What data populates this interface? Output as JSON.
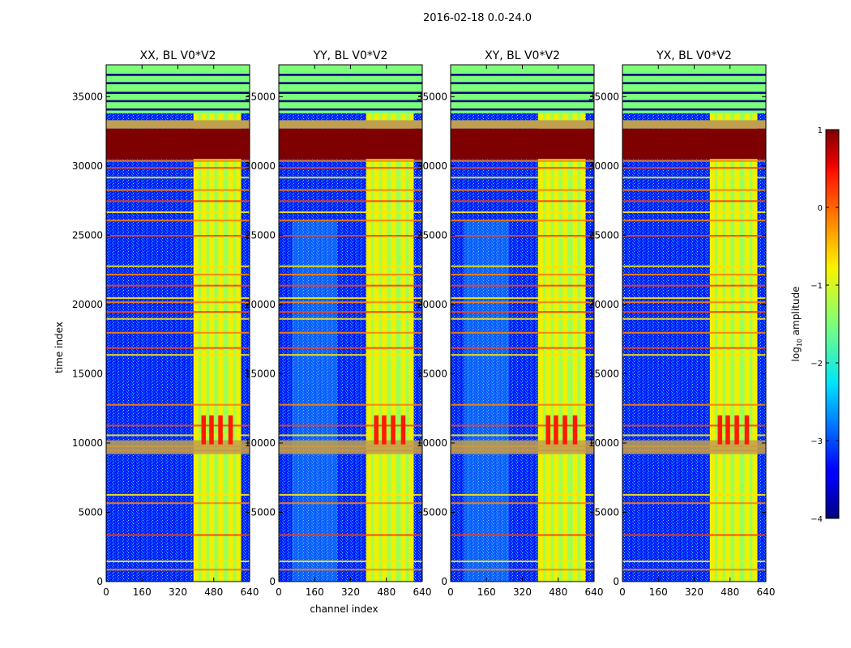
{
  "figure": {
    "suptitle": "2016-02-18 0.0-24.0"
  },
  "chart_data": [
    {
      "type": "heatmap",
      "title": "XX, BL V0*V2",
      "xlabel": "channel index",
      "ylabel": "time index",
      "xlim": [
        0,
        640
      ],
      "ylim": [
        0,
        37300
      ],
      "xticks": [
        0,
        160,
        320,
        480,
        640
      ],
      "yticks": [
        0,
        5000,
        10000,
        15000,
        20000,
        25000,
        30000,
        35000
      ],
      "show_xlabel": false,
      "show_ylabel": true
    },
    {
      "type": "heatmap",
      "title": "YY, BL V0*V2",
      "xlabel": "channel index",
      "ylabel": "time index",
      "xlim": [
        0,
        640
      ],
      "ylim": [
        0,
        37300
      ],
      "xticks": [
        0,
        160,
        320,
        480,
        640
      ],
      "yticks": [
        0,
        5000,
        10000,
        15000,
        20000,
        25000,
        30000,
        35000
      ],
      "show_xlabel": true,
      "show_ylabel": false
    },
    {
      "type": "heatmap",
      "title": "XY, BL V0*V2",
      "xlabel": "channel index",
      "ylabel": "time index",
      "xlim": [
        0,
        640
      ],
      "ylim": [
        0,
        37300
      ],
      "xticks": [
        0,
        160,
        320,
        480,
        640
      ],
      "yticks": [
        0,
        5000,
        10000,
        15000,
        20000,
        25000,
        30000,
        35000
      ],
      "show_xlabel": false,
      "show_ylabel": false
    },
    {
      "type": "heatmap",
      "title": "YX, BL V0*V2",
      "xlabel": "channel index",
      "ylabel": "time index",
      "xlim": [
        0,
        640
      ],
      "ylim": [
        0,
        37300
      ],
      "xticks": [
        0,
        160,
        320,
        480,
        640
      ],
      "yticks": [
        0,
        5000,
        10000,
        15000,
        20000,
        25000,
        30000,
        35000
      ],
      "show_xlabel": false,
      "show_ylabel": false
    }
  ],
  "colorbar": {
    "label": "log10 amplitude",
    "label_prefix": "log",
    "label_sub": "10",
    "label_suffix": " amplitude",
    "vmin": -4,
    "vmax": 1,
    "ticks": [
      1,
      0,
      -1,
      -2,
      -3,
      -4
    ],
    "tick_labels": [
      "1",
      "0",
      "−1",
      "−2",
      "−3",
      "−4"
    ],
    "colormap": "jet"
  },
  "features": {
    "band_channels": [
      390,
      600
    ],
    "strong_channels": [
      390,
      425,
      460,
      500,
      545,
      580
    ],
    "saturated_time_range": [
      30500,
      32700
    ],
    "rfi_time_range": [
      9200,
      10200
    ]
  }
}
